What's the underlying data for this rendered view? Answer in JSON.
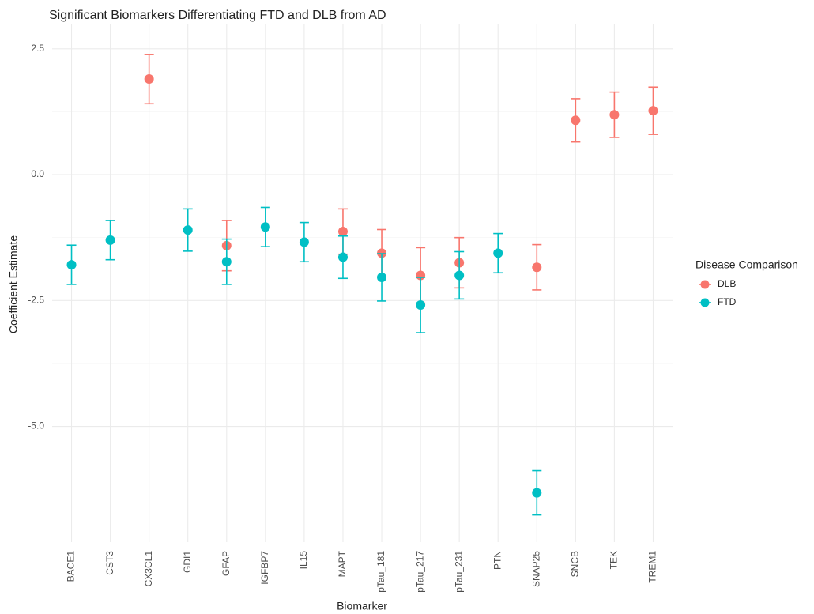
{
  "chart_data": {
    "type": "errorbar",
    "title": "Significant Biomarkers Differentiating FTD and DLB from AD",
    "x_label": "Biomarker",
    "y_label": "Coefficient Estimate",
    "legend_title": "Disease Comparison",
    "legend_position": "right",
    "grid": true,
    "categories": [
      "BACE1",
      "CST3",
      "CX3CL1",
      "GDI1",
      "GFAP",
      "IGFBP7",
      "IL15",
      "MAPT",
      "pTau_181",
      "pTau_217",
      "pTau_231",
      "PTN",
      "SNAP25",
      "SNCB",
      "TEK",
      "TREM1"
    ],
    "ylim": [
      -7.3,
      3.0
    ],
    "yticks": [
      {
        "value": -5,
        "label": "-5.0"
      },
      -2.5,
      {
        "value": 0,
        "label": "0.0"
      },
      2.5
    ],
    "series": [
      {
        "name": "DLB",
        "color": "#f8766d",
        "values": [
          null,
          null,
          1.9,
          null,
          -1.41,
          null,
          null,
          -1.13,
          -1.56,
          -2.0,
          -1.75,
          null,
          -1.84,
          1.08,
          1.19,
          1.27
        ],
        "errors": [
          null,
          null,
          0.49,
          null,
          0.5,
          null,
          null,
          0.45,
          0.47,
          0.55,
          0.5,
          null,
          0.45,
          0.43,
          0.45,
          0.47
        ]
      },
      {
        "name": "FTD",
        "color": "#00bfc4",
        "values": [
          -1.79,
          -1.3,
          null,
          -1.1,
          -1.73,
          -1.04,
          -1.34,
          -1.64,
          -2.04,
          -2.59,
          -2.0,
          -1.56,
          -6.32,
          null,
          null,
          null
        ],
        "errors": [
          0.39,
          0.39,
          null,
          0.42,
          0.45,
          0.39,
          0.39,
          0.42,
          0.47,
          0.55,
          0.47,
          0.39,
          0.44,
          null,
          null,
          null
        ]
      }
    ]
  }
}
